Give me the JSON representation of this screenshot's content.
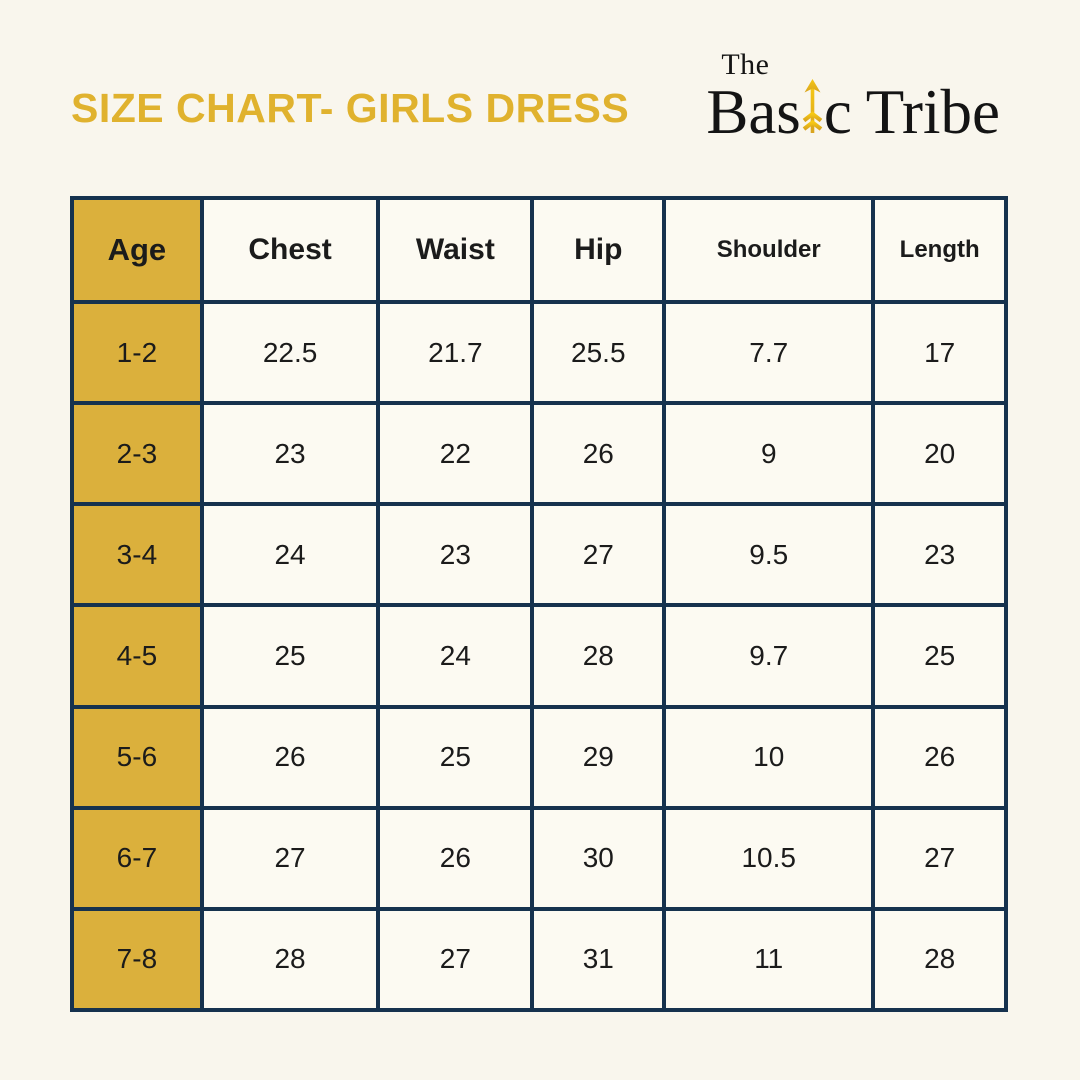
{
  "title": {
    "text": "SIZE CHART- GIRLS DRESS"
  },
  "logo": {
    "the": "The",
    "basic_pre": "Bas",
    "basic_post": "c",
    "tribe": "Tribe"
  },
  "colors": {
    "background": "#F9F6ED",
    "cell_background": "#FCFAF2",
    "title_gold": "#E0B22E",
    "accent_gold": "#DBB03C",
    "border_navy": "#16324E",
    "text_dark": "#1B1B1B",
    "logo_black": "#141414",
    "arrow_gold_top": "#F6C813",
    "arrow_gold_bottom": "#D9A41F"
  },
  "chart_data": {
    "type": "table",
    "title": "SIZE CHART- GIRLS DRESS",
    "columns": [
      "Age",
      "Chest",
      "Waist",
      "Hip",
      "Shoulder",
      "Length"
    ],
    "rows": [
      [
        "1-2",
        "22.5",
        "21.7",
        "25.5",
        "7.7",
        "17"
      ],
      [
        "2-3",
        "23",
        "22",
        "26",
        "9",
        "20"
      ],
      [
        "3-4",
        "24",
        "23",
        "27",
        "9.5",
        "23"
      ],
      [
        "4-5",
        "25",
        "24",
        "28",
        "9.7",
        "25"
      ],
      [
        "5-6",
        "26",
        "25",
        "29",
        "10",
        "26"
      ],
      [
        "6-7",
        "27",
        "26",
        "30",
        "10.5",
        "27"
      ],
      [
        "7-8",
        "28",
        "27",
        "31",
        "11",
        "28"
      ]
    ]
  }
}
